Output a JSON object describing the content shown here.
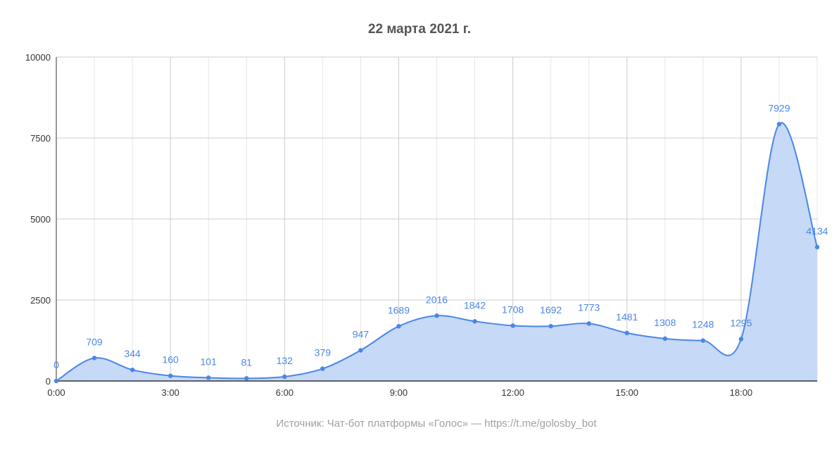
{
  "chart_data": {
    "type": "area",
    "title": "22 марта 2021 г.",
    "footnote": "Источник: Чат-бот платформы «Голос» — https://t.me/golosby_bot",
    "x": [
      0,
      1,
      2,
      3,
      4,
      5,
      6,
      7,
      8,
      9,
      10,
      11,
      12,
      13,
      14,
      15,
      16,
      17,
      18,
      19,
      20
    ],
    "x_tick_values": [
      0,
      3,
      6,
      9,
      12,
      15,
      18
    ],
    "x_tick_labels": [
      "0:00",
      "3:00",
      "6:00",
      "9:00",
      "12:00",
      "15:00",
      "18:00"
    ],
    "xlim": [
      0,
      20
    ],
    "series": [
      {
        "values": [
          0,
          709,
          344,
          160,
          101,
          81,
          132,
          379,
          947,
          1689,
          2016,
          1842,
          1708,
          1692,
          1773,
          1481,
          1308,
          1248,
          1295,
          7929,
          4134
        ],
        "data_labels": [
          "0",
          "709",
          "344",
          "160",
          "101",
          "81",
          "132",
          "379",
          "947",
          "1689",
          "2016",
          "1842",
          "1708",
          "1692",
          "1773",
          "1481",
          "1308",
          "1248",
          "1295",
          "7929",
          "4134"
        ],
        "color": "#4a86e8",
        "fill_color": "#c6d9f7"
      }
    ],
    "y_tick_values": [
      0,
      2500,
      5000,
      7500,
      10000
    ],
    "y_tick_labels": [
      "0",
      "2500",
      "5000",
      "7500",
      "10000"
    ],
    "ylim": [
      0,
      10000
    ],
    "grid": true,
    "smooth": true,
    "legend": "none",
    "label_color": "#4a86e8"
  }
}
